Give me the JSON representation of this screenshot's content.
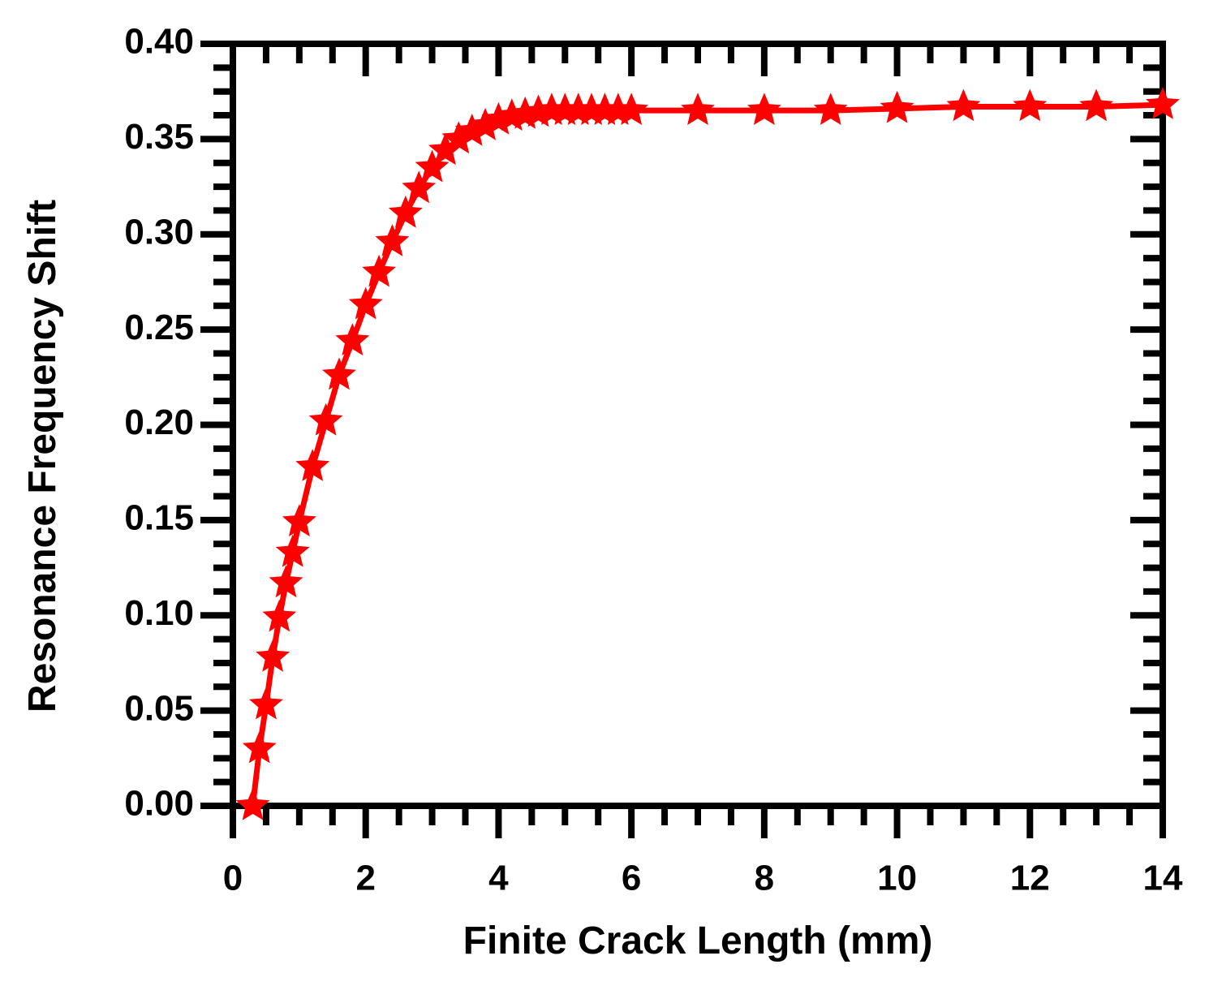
{
  "chart_data": {
    "type": "line",
    "xlabel": "Finite Crack Length (mm)",
    "ylabel": "Resonance Frequency Shift",
    "x": [
      0.3,
      0.4,
      0.5,
      0.6,
      0.7,
      0.8,
      0.9,
      1.0,
      1.2,
      1.4,
      1.6,
      1.8,
      2.0,
      2.2,
      2.4,
      2.6,
      2.8,
      3.0,
      3.2,
      3.4,
      3.6,
      3.8,
      4.0,
      4.2,
      4.4,
      4.6,
      4.8,
      5.0,
      5.2,
      5.4,
      5.6,
      5.8,
      6.0,
      7,
      8,
      9,
      10,
      11,
      12,
      13,
      14
    ],
    "values": [
      0.0,
      0.03,
      0.053,
      0.078,
      0.099,
      0.117,
      0.133,
      0.149,
      0.178,
      0.202,
      0.226,
      0.244,
      0.263,
      0.28,
      0.296,
      0.311,
      0.324,
      0.335,
      0.344,
      0.35,
      0.354,
      0.357,
      0.36,
      0.362,
      0.363,
      0.364,
      0.365,
      0.365,
      0.365,
      0.365,
      0.365,
      0.365,
      0.365,
      0.365,
      0.365,
      0.365,
      0.366,
      0.367,
      0.367,
      0.367,
      0.368
    ],
    "color": "#ff0000",
    "marker": "star",
    "xlim": [
      0,
      14
    ],
    "xticks": [
      0,
      2,
      4,
      6,
      8,
      10,
      12,
      14
    ],
    "ylim": [
      0,
      0.4
    ],
    "yticks": [
      {
        "value": 0,
        "label": "0.00"
      },
      0.05,
      {
        "value": 0.1,
        "label": "0.10"
      },
      0.15,
      {
        "value": 0.2,
        "label": "0.20"
      },
      0.25,
      {
        "value": 0.3,
        "label": "0.30"
      },
      0.35,
      {
        "value": 0.4,
        "label": "0.40"
      }
    ],
    "grid": false
  }
}
